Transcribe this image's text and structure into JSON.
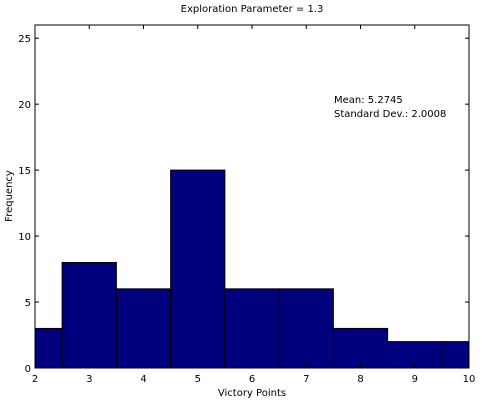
{
  "chart_data": {
    "type": "bar",
    "title": "Exploration Parameter = 1.3",
    "xlabel": "Victory Points",
    "ylabel": "Frequency",
    "xlim": [
      2,
      10
    ],
    "ylim": [
      0,
      26
    ],
    "xticks": [
      2,
      3,
      4,
      5,
      6,
      7,
      8,
      9,
      10
    ],
    "yticks": [
      0,
      5,
      10,
      15,
      20,
      25
    ],
    "bins": [
      {
        "x0": 2.0,
        "x1": 2.5,
        "value": 3
      },
      {
        "x0": 2.5,
        "x1": 3.5,
        "value": 8
      },
      {
        "x0": 3.5,
        "x1": 4.5,
        "value": 6
      },
      {
        "x0": 4.5,
        "x1": 5.5,
        "value": 15
      },
      {
        "x0": 5.5,
        "x1": 6.5,
        "value": 6
      },
      {
        "x0": 6.5,
        "x1": 7.5,
        "value": 6
      },
      {
        "x0": 7.5,
        "x1": 8.5,
        "value": 3
      },
      {
        "x0": 8.5,
        "x1": 9.5,
        "value": 2
      },
      {
        "x0": 9.5,
        "x1": 10.0,
        "value": 2
      }
    ],
    "annotation": {
      "mean": "Mean: 5.2745",
      "std": "Standard Dev.: 2.0008"
    },
    "bar_color": "#00007f",
    "grid": false
  }
}
